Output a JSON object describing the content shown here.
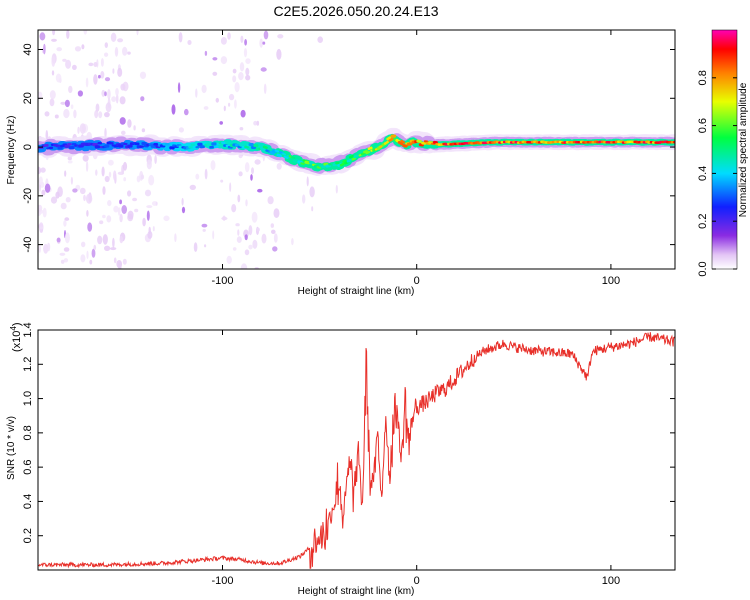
{
  "figure": {
    "title": "C2E5.2026.050.20.24.E13"
  },
  "chart_data": [
    {
      "type": "heatmap",
      "panel": "spectrogram",
      "xlabel": "Height of straight line (km)",
      "ylabel": "Frequency (Hz)",
      "xlim": [
        -195,
        133
      ],
      "ylim": [
        -50,
        48
      ],
      "xticks": [
        -100,
        0,
        100
      ],
      "xtick_labels": [
        "-100",
        "0",
        "100"
      ],
      "yticks": [
        -40,
        -20,
        0,
        20,
        40
      ],
      "ytick_labels": [
        "-40",
        "-20",
        "0",
        "20",
        "40"
      ],
      "colorbar": {
        "label": "Normalized spectral amplitude",
        "range": [
          0,
          1
        ],
        "ticks": [
          0.0,
          0.2,
          0.4,
          0.6,
          0.8
        ],
        "tick_labels": [
          "0.0",
          "0.2",
          "0.4",
          "0.6",
          "0.8"
        ],
        "colormap": [
          "#ffffff",
          "#e3c4f5",
          "#8a2be2",
          "#1020ff",
          "#00dcff",
          "#00ff40",
          "#e8ff00",
          "#ff8000",
          "#ff0000",
          "#ff00b4"
        ]
      },
      "ridge": {
        "description": "dominant frequency track vs height",
        "height_km": [
          -195,
          -150,
          -120,
          -100,
          -80,
          -70,
          -60,
          -50,
          -40,
          -30,
          -20,
          -12,
          -6,
          0,
          10,
          40,
          80,
          133
        ],
        "frequency_hz": [
          0,
          1,
          0,
          1,
          0,
          -3,
          -6,
          -8,
          -7,
          -3,
          0,
          4,
          1,
          2,
          1,
          2,
          2,
          2
        ],
        "amplitude": [
          0.35,
          0.35,
          0.45,
          0.5,
          0.5,
          0.55,
          0.6,
          0.6,
          0.55,
          0.6,
          0.7,
          0.75,
          0.8,
          0.85,
          0.9,
          0.9,
          0.9,
          0.9
        ]
      }
    },
    {
      "type": "line",
      "panel": "snr",
      "xlabel": "Height of straight line (km)",
      "ylabel": "SNR (10 * v/v)",
      "scale_label": "(x10",
      "scale_exponent": "4",
      "scale_close": ")",
      "xlim": [
        -195,
        133
      ],
      "ylim": [
        0.0,
        1.4
      ],
      "xticks": [
        -100,
        0,
        100
      ],
      "xtick_labels": [
        "-100",
        "0",
        "100"
      ],
      "yticks": [
        0.2,
        0.4,
        0.6,
        0.8,
        1.0,
        1.2,
        1.4
      ],
      "ytick_labels": [
        "0.2",
        "0.4",
        "0.6",
        "0.8",
        "1.0",
        "1.2",
        "1.4"
      ],
      "series": [
        {
          "name": "SNR",
          "color": "#e8302a",
          "x": [
            -195,
            -160,
            -130,
            -110,
            -100,
            -90,
            -80,
            -70,
            -60,
            -50,
            -45,
            -42,
            -40,
            -38,
            -35,
            -32,
            -30,
            -28,
            -26,
            -24,
            -22,
            -20,
            -18,
            -16,
            -14,
            -12,
            -10,
            -8,
            -6,
            -4,
            -2,
            0,
            5,
            10,
            15,
            20,
            25,
            30,
            35,
            40,
            45,
            50,
            60,
            70,
            80,
            88,
            90,
            92,
            100,
            110,
            120,
            133
          ],
          "y": [
            0.03,
            0.03,
            0.04,
            0.06,
            0.07,
            0.06,
            0.04,
            0.04,
            0.08,
            0.18,
            0.28,
            0.42,
            0.55,
            0.3,
            0.6,
            0.45,
            0.7,
            0.35,
            1.2,
            0.5,
            0.55,
            0.75,
            0.45,
            0.9,
            0.55,
            0.85,
            0.95,
            0.62,
            0.98,
            0.72,
            0.9,
            0.95,
            0.98,
            1.03,
            1.06,
            1.12,
            1.18,
            1.24,
            1.28,
            1.3,
            1.32,
            1.3,
            1.28,
            1.27,
            1.26,
            1.12,
            1.26,
            1.28,
            1.3,
            1.32,
            1.36,
            1.33
          ]
        }
      ]
    }
  ]
}
